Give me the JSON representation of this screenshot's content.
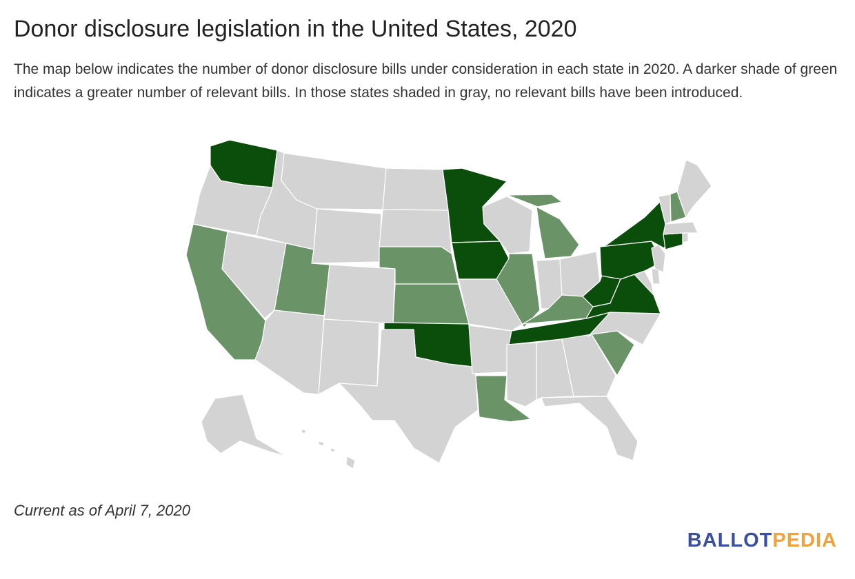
{
  "title": "Donor disclosure legislation in the United States, 2020",
  "description": "The map below indicates the number of donor disclosure bills under consideration in each state in 2020. A darker shade of green indicates a greater number of relevant bills. In those states shaded in gray, no relevant bills have been introduced.",
  "footnote": "Current as of April 7, 2020",
  "brand": {
    "part1": "BALLOT",
    "part2": "PEDIA"
  },
  "colors": {
    "none": "#d3d3d3",
    "some": "#6a9368",
    "many": "#0b4d0b",
    "border": "#ffffff",
    "brand_primary": "#3a4fa0",
    "brand_accent": "#f2a23a"
  },
  "map_data": {
    "levels": [
      "none",
      "some",
      "many"
    ],
    "states": {
      "WA": "many",
      "OR": "none",
      "CA": "some",
      "NV": "none",
      "ID": "none",
      "MT": "none",
      "WY": "none",
      "UT": "some",
      "AZ": "none",
      "CO": "none",
      "NM": "none",
      "ND": "none",
      "SD": "none",
      "NE": "some",
      "KS": "some",
      "OK": "many",
      "TX": "none",
      "MN": "many",
      "IA": "many",
      "MO": "none",
      "AR": "none",
      "LA": "some",
      "WI": "none",
      "IL": "some",
      "MI": "some",
      "IN": "none",
      "OH": "none",
      "KY": "some",
      "TN": "many",
      "MS": "none",
      "AL": "none",
      "GA": "none",
      "FL": "none",
      "SC": "some",
      "NC": "none",
      "VA": "many",
      "WV": "many",
      "MD": "none",
      "DE": "none",
      "NJ": "none",
      "PA": "many",
      "NY": "many",
      "CT": "many",
      "RI": "none",
      "MA": "none",
      "VT": "none",
      "NH": "some",
      "ME": "none",
      "AK": "none",
      "HI": "none"
    }
  }
}
